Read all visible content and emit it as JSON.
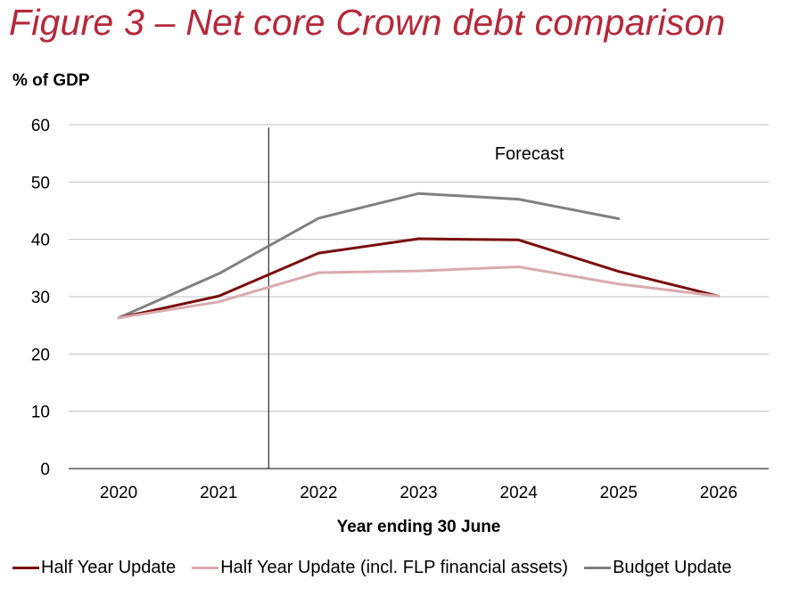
{
  "title": "Figure 3 – Net core Crown debt comparison",
  "colors": {
    "title": "#b5283a",
    "half_year": "#7a0d0d",
    "half_year_flp": "#d9aaae",
    "budget": "#808080"
  },
  "chart_data": {
    "type": "line",
    "ylabel": "% of GDP",
    "xlabel": "Year ending 30 June",
    "categories": [
      "2020",
      "2021",
      "2022",
      "2023",
      "2024",
      "2025",
      "2026"
    ],
    "ylim": [
      0,
      60
    ],
    "yticks": [
      "0",
      "10",
      "20",
      "30",
      "40",
      "50",
      "60"
    ],
    "grid": true,
    "legend_position": "bottom",
    "annotation": {
      "text": "Forecast",
      "divider_between": [
        "2021",
        "2022"
      ]
    },
    "series": [
      {
        "name": "Half Year Update",
        "color": "#7a0d0d",
        "values": [
          26.3,
          30.1,
          37.6,
          40.1,
          39.9,
          34.4,
          30.1
        ]
      },
      {
        "name": "Half Year Update (incl. FLP financial assets)",
        "color": "#d9aaae",
        "values": [
          26.3,
          29.1,
          34.2,
          34.5,
          35.2,
          32.2,
          30.1
        ]
      },
      {
        "name": "Budget Update",
        "color": "#808080",
        "values": [
          26.3,
          34.0,
          43.7,
          48.0,
          47.0,
          43.6,
          null
        ]
      }
    ]
  }
}
